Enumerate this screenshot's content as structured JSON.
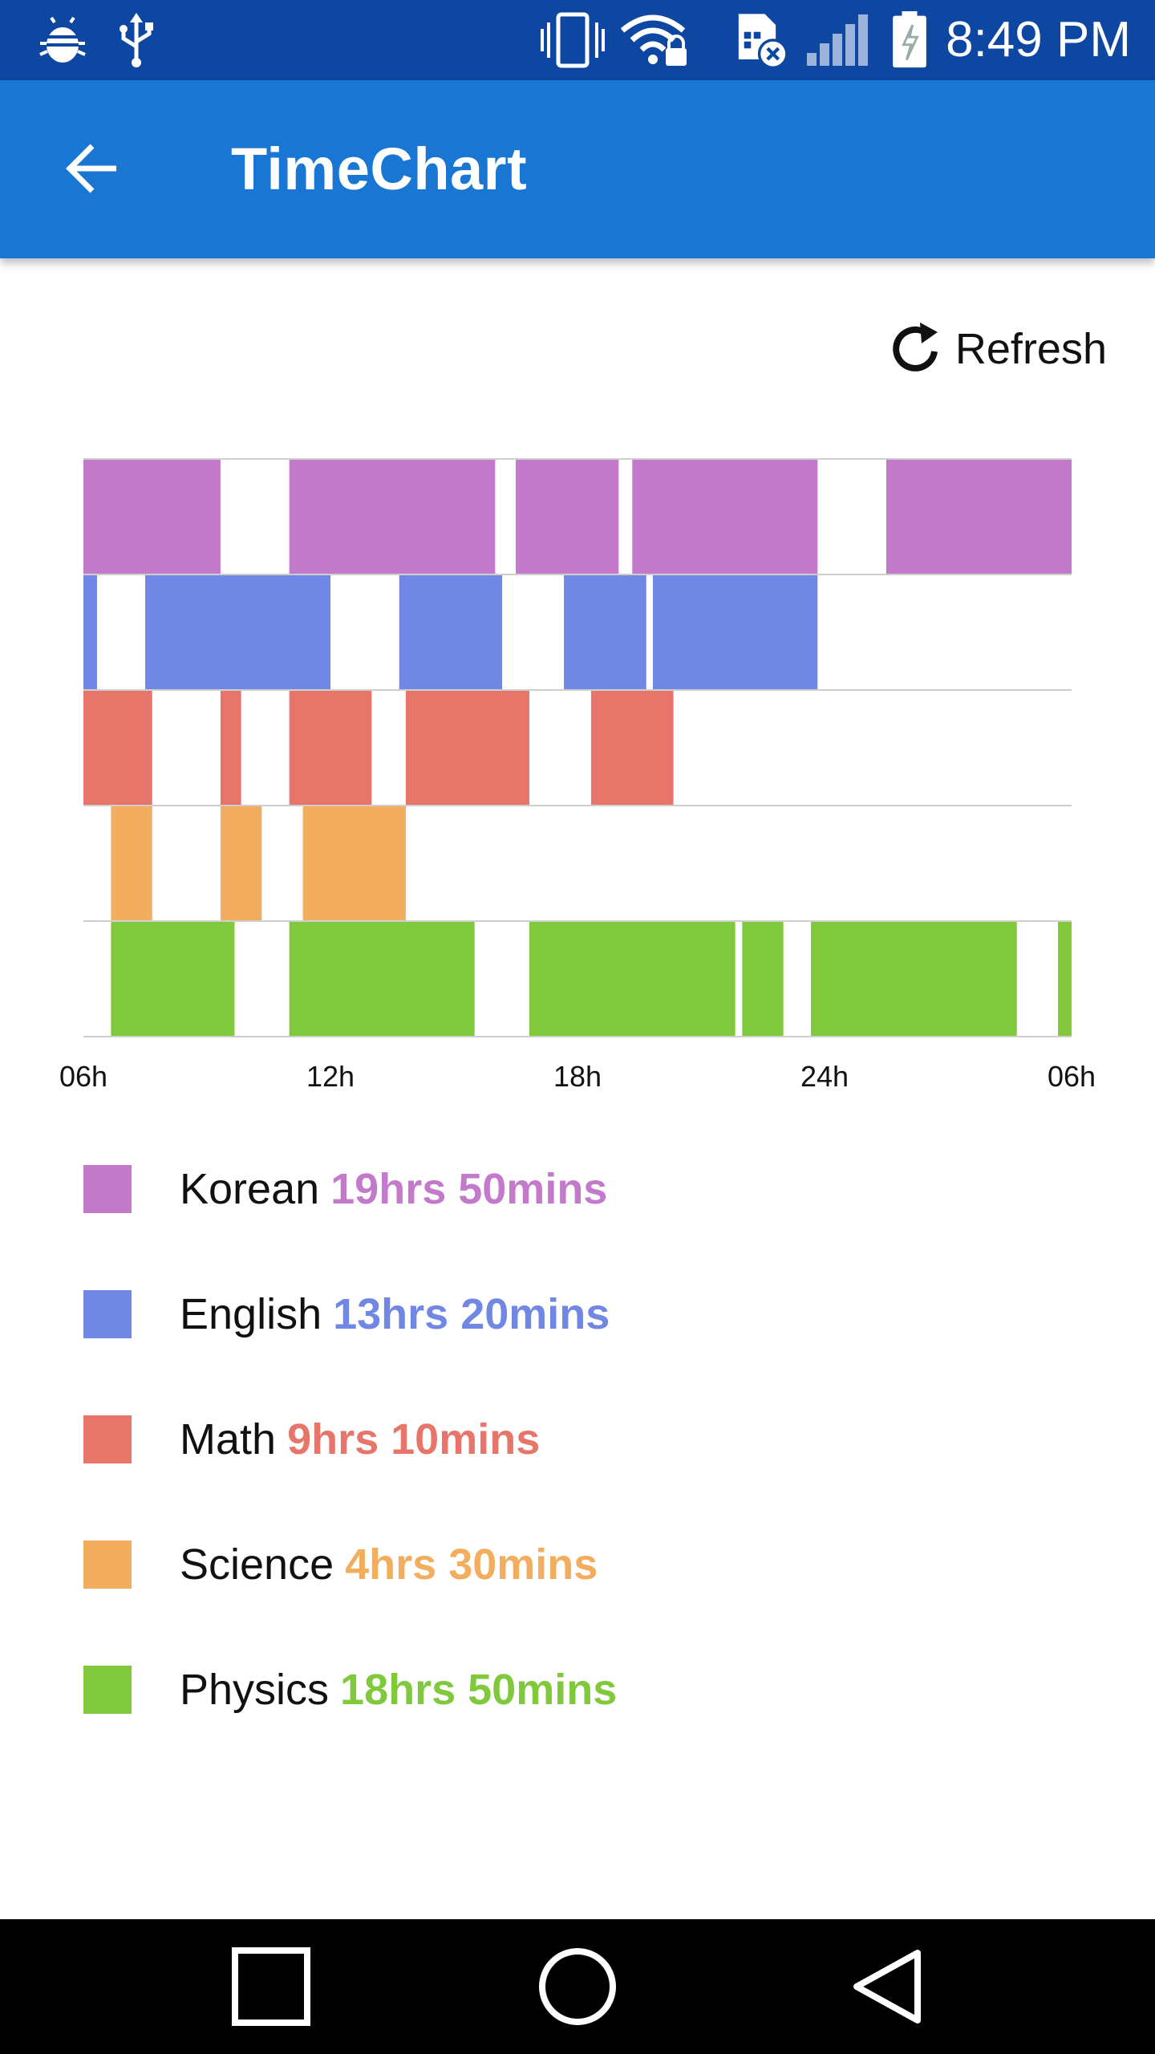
{
  "status_bar": {
    "time": "8:49 PM",
    "icons": [
      "android-debug-icon",
      "usb-icon",
      "vibrate-icon",
      "wifi-lock-icon",
      "sim-error-icon",
      "signal-icon",
      "battery-charging-icon"
    ]
  },
  "app_bar": {
    "title": "TimeChart",
    "back_icon": "arrow-back-icon"
  },
  "refresh": {
    "label": "Refresh",
    "icon": "refresh-icon"
  },
  "chart_data": {
    "type": "timeline",
    "x_unit": "hour",
    "x_range": [
      6,
      30
    ],
    "x_ticks": [
      "06h",
      "12h",
      "18h",
      "24h",
      "06h"
    ],
    "grid": true,
    "rows": [
      {
        "name": "Korean",
        "color": "#c47acb",
        "intervals": [
          [
            6.0,
            9.33
          ],
          [
            11.0,
            16.0
          ],
          [
            16.5,
            19.0
          ],
          [
            19.33,
            23.83
          ],
          [
            25.5,
            30.0
          ]
        ]
      },
      {
        "name": "English",
        "color": "#7087e4",
        "intervals": [
          [
            6.0,
            6.33
          ],
          [
            7.5,
            12.0
          ],
          [
            13.67,
            16.17
          ],
          [
            17.67,
            19.67
          ],
          [
            19.83,
            23.83
          ]
        ]
      },
      {
        "name": "Math",
        "color": "#e8756a",
        "intervals": [
          [
            6.0,
            7.67
          ],
          [
            9.33,
            9.83
          ],
          [
            11.0,
            13.0
          ],
          [
            13.83,
            16.83
          ],
          [
            18.33,
            20.33
          ]
        ]
      },
      {
        "name": "Science",
        "color": "#f2ae5e",
        "intervals": [
          [
            6.67,
            7.67
          ],
          [
            9.33,
            10.33
          ],
          [
            11.33,
            13.83
          ]
        ]
      },
      {
        "name": "Physics",
        "color": "#80c83c",
        "intervals": [
          [
            6.67,
            9.67
          ],
          [
            11.0,
            15.5
          ],
          [
            16.83,
            21.83
          ],
          [
            22.0,
            23.0
          ],
          [
            23.67,
            28.67
          ],
          [
            29.67,
            30.0
          ]
        ]
      }
    ]
  },
  "legend": [
    {
      "subject": "Korean",
      "duration": "19hrs 50mins",
      "color": "#c47acb"
    },
    {
      "subject": "English",
      "duration": "13hrs 20mins",
      "color": "#7087e4"
    },
    {
      "subject": "Math",
      "duration": "9hrs 10mins",
      "color": "#e8756a"
    },
    {
      "subject": "Science",
      "duration": "4hrs 30mins",
      "color": "#f2ae5e"
    },
    {
      "subject": "Physics",
      "duration": "18hrs 50mins",
      "color": "#80c83c"
    }
  ],
  "nav_bar": {
    "items": [
      "recent-apps-icon",
      "home-icon",
      "back-icon"
    ]
  }
}
